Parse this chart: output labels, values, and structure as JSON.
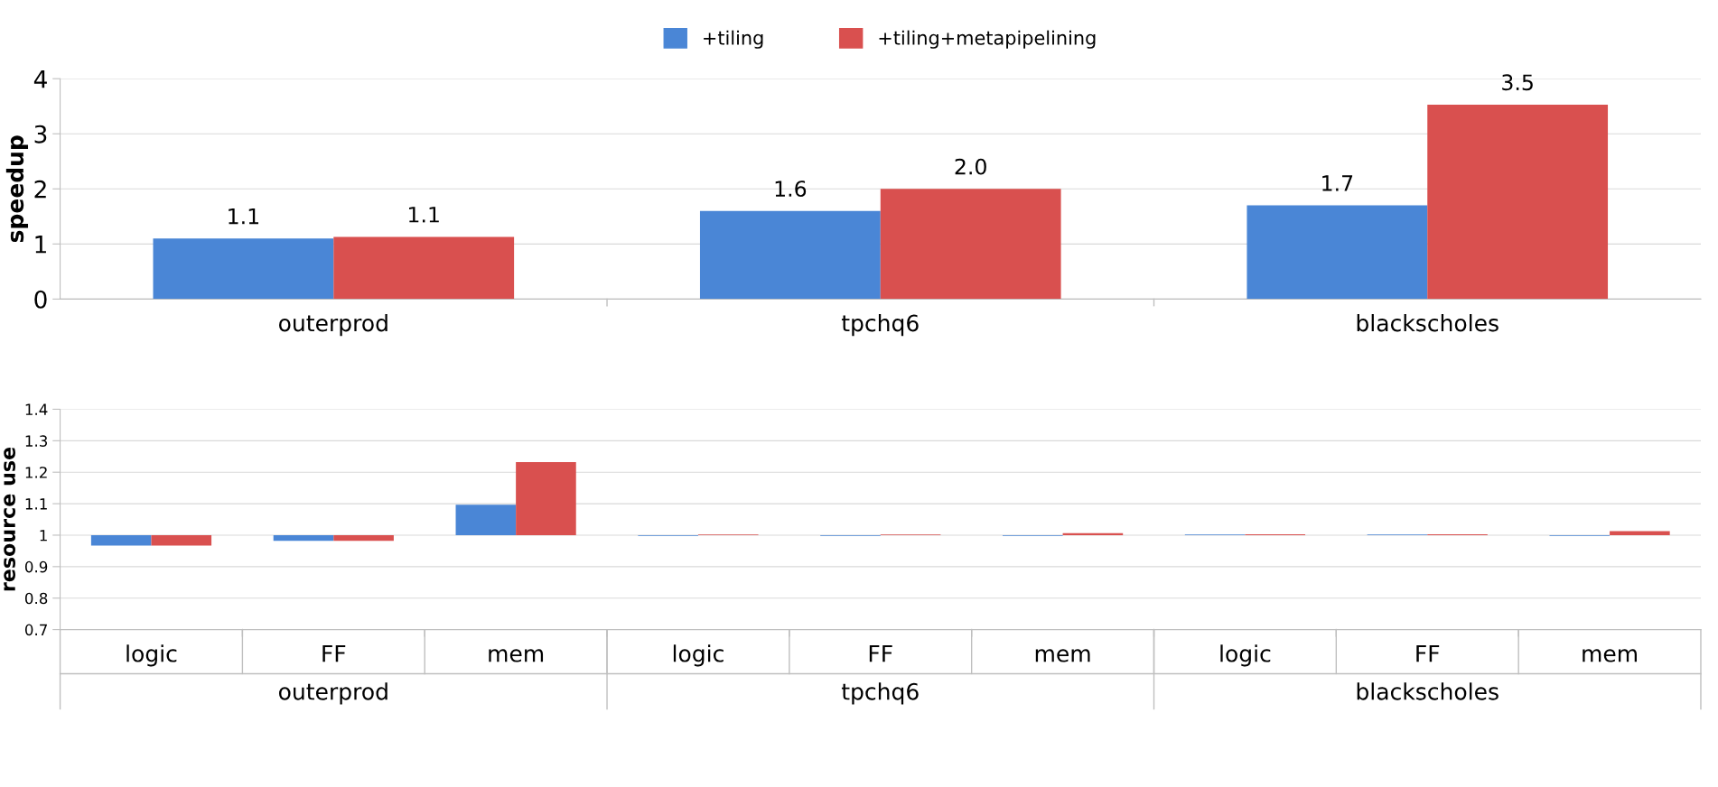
{
  "chart_data": [
    {
      "type": "bar",
      "ylabel": "speedup",
      "categories": [
        "outerprod",
        "tpchq6",
        "blackscholes"
      ],
      "ylim": [
        0,
        4
      ],
      "yticks": [
        0,
        1,
        2,
        3,
        4
      ],
      "grid": "y",
      "legend": "top",
      "data_labels": false,
      "series": [
        {
          "name": "+tiling",
          "color": "#4a86d6",
          "values": [
            1.1,
            1.6,
            1.7
          ],
          "value_labels": [
            "1.1",
            "1.6",
            "1.7"
          ]
        },
        {
          "name": "+tiling+metapipelining",
          "color": "#d9504f",
          "values": [
            1.13,
            2.0,
            3.53
          ],
          "value_labels": [
            "1.1",
            "2.0",
            "3.5"
          ]
        }
      ]
    },
    {
      "type": "bar",
      "ylabel": "resource use",
      "categories": [
        "logic",
        "FF",
        "mem",
        "logic",
        "FF",
        "mem",
        "logic",
        "FF",
        "mem"
      ],
      "ylim": [
        0.7,
        1.4
      ],
      "yticks": [
        0.7,
        0.8,
        0.9,
        1,
        1.1,
        1.2,
        1.3,
        1.4
      ],
      "grid": "y",
      "annotations": [
        "outerprod",
        "tpchq6",
        "blackscholes"
      ],
      "series": [
        {
          "color": "#4a86d6",
          "base": [
            1,
            1,
            1,
            1,
            1,
            1,
            1,
            1,
            1
          ],
          "values": [
            -0.033,
            -0.018,
            0.097,
            -0.002,
            -0.002,
            -0.002,
            0.002,
            0.002,
            -0.002
          ]
        },
        {
          "color": "#d9504f",
          "base": [
            1,
            1,
            1,
            1,
            1,
            1,
            1,
            1,
            1
          ],
          "values": [
            -0.033,
            -0.018,
            0.232,
            0.002,
            0.002,
            0.006,
            0.003,
            0.003,
            0.013
          ]
        }
      ]
    }
  ]
}
